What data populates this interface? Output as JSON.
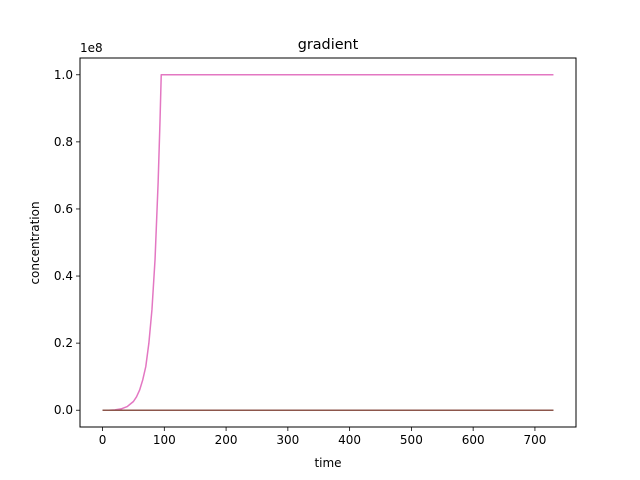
{
  "chart_data": {
    "type": "line",
    "title": "gradient",
    "xlabel": "time",
    "ylabel": "concentration",
    "y_offset_label": "1e8",
    "xlim": [
      -36.5,
      766.5
    ],
    "ylim": [
      -0.05,
      1.05
    ],
    "x_ticks": [
      0,
      100,
      200,
      300,
      400,
      500,
      600,
      700
    ],
    "x_tick_labels": [
      "0",
      "100",
      "200",
      "300",
      "400",
      "500",
      "600",
      "700"
    ],
    "y_ticks": [
      0.0,
      0.2,
      0.4,
      0.6,
      0.8,
      1.0
    ],
    "y_tick_labels": [
      "0.0",
      "0.2",
      "0.4",
      "0.6",
      "0.8",
      "1.0"
    ],
    "grid": false,
    "legend": "none",
    "series": [
      {
        "color": "#e377c2",
        "x": [
          0,
          10,
          20,
          30,
          40,
          50,
          55,
          60,
          65,
          70,
          75,
          80,
          85,
          90,
          93,
          95,
          730
        ],
        "y": [
          0.0,
          0.0,
          0.001,
          0.004,
          0.011,
          0.026,
          0.04,
          0.06,
          0.09,
          0.13,
          0.2,
          0.3,
          0.45,
          0.68,
          0.86,
          1.0,
          1.0
        ]
      },
      {
        "color": "#7f7f7f",
        "x": [
          0,
          730
        ],
        "y": [
          0.0,
          0.0
        ]
      },
      {
        "color": "#8c564b",
        "x": [
          0,
          730
        ],
        "y": [
          0.0,
          0.0
        ]
      }
    ]
  }
}
